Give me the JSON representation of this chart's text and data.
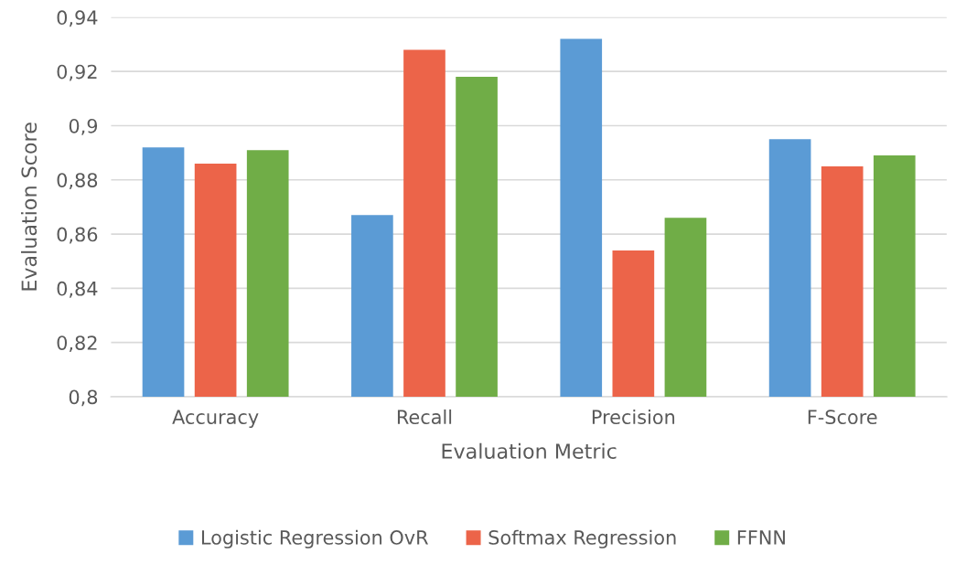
{
  "chart_data": {
    "type": "bar",
    "xlabel": "Evaluation Metric",
    "ylabel": "Evaluation Score",
    "categories": [
      "Accuracy",
      "Recall",
      "Precision",
      "F-Score"
    ],
    "series": [
      {
        "name": "Logistic Regression OvR",
        "color": "#5b9bd5",
        "values": [
          0.892,
          0.867,
          0.932,
          0.895
        ]
      },
      {
        "name": "Softmax Regression",
        "color": "#ec6449",
        "values": [
          0.886,
          0.928,
          0.854,
          0.885
        ]
      },
      {
        "name": "FFNN",
        "color": "#70ad47",
        "values": [
          0.891,
          0.918,
          0.866,
          0.889
        ]
      }
    ],
    "ylim": [
      0.8,
      0.94
    ],
    "yticks": [
      {
        "value": 0.8,
        "label": "0,8"
      },
      {
        "value": 0.82,
        "label": "0,82"
      },
      {
        "value": 0.84,
        "label": "0,84"
      },
      {
        "value": 0.86,
        "label": "0,86"
      },
      {
        "value": 0.88,
        "label": "0,88"
      },
      {
        "value": 0.9,
        "label": "0,9"
      },
      {
        "value": 0.92,
        "label": "0,92"
      },
      {
        "value": 0.94,
        "label": "0,94"
      }
    ],
    "grid": "y",
    "legend": "bottom"
  }
}
